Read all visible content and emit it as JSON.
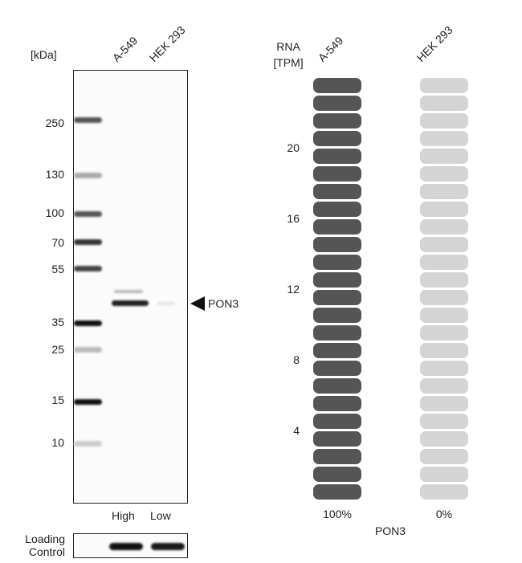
{
  "blot": {
    "kda_label": "[kDa]",
    "lanes": [
      "A-549",
      "HEK 293"
    ],
    "markers": [
      "250",
      "130",
      "100",
      "70",
      "55",
      "35",
      "25",
      "15",
      "10"
    ],
    "target_label": "PON3",
    "expression": [
      "High",
      "Low"
    ],
    "loading_label_line1": "Loading",
    "loading_label_line2": "Control"
  },
  "rna": {
    "header_line1": "RNA",
    "header_line2": "[TPM]",
    "samples": [
      "A-549",
      "HEK 293"
    ],
    "ticks": [
      "20",
      "16",
      "12",
      "8",
      "4"
    ],
    "percents": [
      "100%",
      "0%"
    ],
    "gene": "PON3",
    "levels": {
      "A-549": 1.0,
      "HEK 293": 0.0
    },
    "colors": {
      "high": "#555555",
      "low": "#d4d4d4"
    }
  }
}
